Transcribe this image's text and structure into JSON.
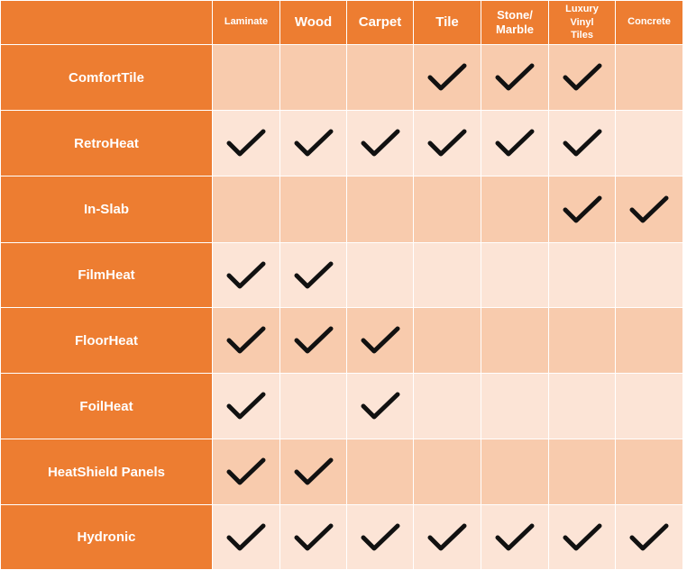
{
  "table": {
    "columns": [
      "Laminate",
      "Wood",
      "Carpet",
      "Tile",
      "Stone/\nMarble",
      "Luxury\nVinyl\nTiles",
      "Concrete"
    ],
    "rows": [
      {
        "label": "ComfortTile",
        "checks": [
          false,
          false,
          false,
          true,
          true,
          true,
          false
        ]
      },
      {
        "label": "RetroHeat",
        "checks": [
          true,
          true,
          true,
          true,
          true,
          true,
          false
        ]
      },
      {
        "label": "In-Slab",
        "checks": [
          false,
          false,
          false,
          false,
          false,
          true,
          true
        ]
      },
      {
        "label": "FilmHeat",
        "checks": [
          true,
          true,
          false,
          false,
          false,
          false,
          false
        ]
      },
      {
        "label": "FloorHeat",
        "checks": [
          true,
          true,
          true,
          false,
          false,
          false,
          false
        ]
      },
      {
        "label": "FoilHeat",
        "checks": [
          true,
          false,
          true,
          false,
          false,
          false,
          false
        ]
      },
      {
        "label": "HeatShield Panels",
        "checks": [
          true,
          true,
          false,
          false,
          false,
          false,
          false
        ]
      },
      {
        "label": "Hydronic",
        "checks": [
          true,
          true,
          true,
          true,
          true,
          true,
          true
        ]
      }
    ]
  },
  "icons": {
    "check": "check-mark-icon"
  },
  "colors": {
    "header": "#ed7d31",
    "row_odd": "#f8cbad",
    "row_even": "#fce4d6",
    "header_text": "#ffffff",
    "check": "#111111"
  }
}
